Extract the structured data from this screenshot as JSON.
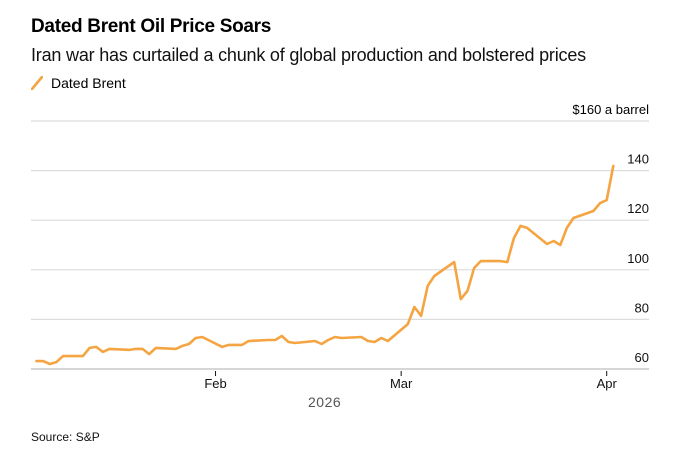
{
  "chart_data": {
    "type": "line",
    "title": "Dated Brent Oil Price Soars",
    "subtitle": "Iran war has curtailed a chunk of global production and bolstered prices",
    "source": "Source: S&P",
    "unit_label": "$160 a barrel",
    "xlabel": "2026",
    "ylabel": "",
    "ylim": [
      60,
      160
    ],
    "yticks": [
      60,
      80,
      100,
      120,
      140,
      160
    ],
    "ytick_labels": [
      "60",
      "80",
      "100",
      "120",
      "140",
      "$160 a barrel"
    ],
    "xlim": [
      "2026-01-01",
      "2026-04-03"
    ],
    "xticks": [
      {
        "date": "2026-02-01",
        "label": "Feb"
      },
      {
        "date": "2026-03-01",
        "label": "Mar"
      },
      {
        "date": "2026-04-01",
        "label": "Apr"
      }
    ],
    "grid": true,
    "legend_position": "top-left",
    "series": [
      {
        "name": "Dated Brent",
        "color": "#f5a442",
        "x": [
          "2026-01-05",
          "2026-01-06",
          "2026-01-07",
          "2026-01-08",
          "2026-01-09",
          "2026-01-12",
          "2026-01-13",
          "2026-01-14",
          "2026-01-15",
          "2026-01-16",
          "2026-01-19",
          "2026-01-20",
          "2026-01-21",
          "2026-01-22",
          "2026-01-23",
          "2026-01-26",
          "2026-01-27",
          "2026-01-28",
          "2026-01-29",
          "2026-01-30",
          "2026-02-02",
          "2026-02-03",
          "2026-02-04",
          "2026-02-05",
          "2026-02-06",
          "2026-02-09",
          "2026-02-10",
          "2026-02-11",
          "2026-02-12",
          "2026-02-13",
          "2026-02-16",
          "2026-02-17",
          "2026-02-18",
          "2026-02-19",
          "2026-02-20",
          "2026-02-23",
          "2026-02-24",
          "2026-02-25",
          "2026-02-26",
          "2026-02-27",
          "2026-03-02",
          "2026-03-03",
          "2026-03-04",
          "2026-03-05",
          "2026-03-06",
          "2026-03-09",
          "2026-03-10",
          "2026-03-11",
          "2026-03-12",
          "2026-03-13",
          "2026-03-16",
          "2026-03-17",
          "2026-03-18",
          "2026-03-19",
          "2026-03-20",
          "2026-03-23",
          "2026-03-24",
          "2026-03-25",
          "2026-03-26",
          "2026-03-27",
          "2026-03-30",
          "2026-03-31",
          "2026-04-01",
          "2026-04-02"
        ],
        "values": [
          63.2,
          63.2,
          62.0,
          62.8,
          65.2,
          65.2,
          68.5,
          68.9,
          66.9,
          68.1,
          67.7,
          68.1,
          68.1,
          66.0,
          68.5,
          68.1,
          69.3,
          70.1,
          72.5,
          72.9,
          68.9,
          69.7,
          69.7,
          69.7,
          71.3,
          71.7,
          71.7,
          73.3,
          70.9,
          70.5,
          71.3,
          70.1,
          71.7,
          72.9,
          72.5,
          72.9,
          71.3,
          70.9,
          72.5,
          71.3,
          78.1,
          85.0,
          81.4,
          93.5,
          97.5,
          103.1,
          88.2,
          91.5,
          100.7,
          103.5,
          103.5,
          103.1,
          112.8,
          117.7,
          116.9,
          110.4,
          111.6,
          110.0,
          116.9,
          120.9,
          123.7,
          126.9,
          128.1,
          141.9
        ]
      }
    ]
  }
}
